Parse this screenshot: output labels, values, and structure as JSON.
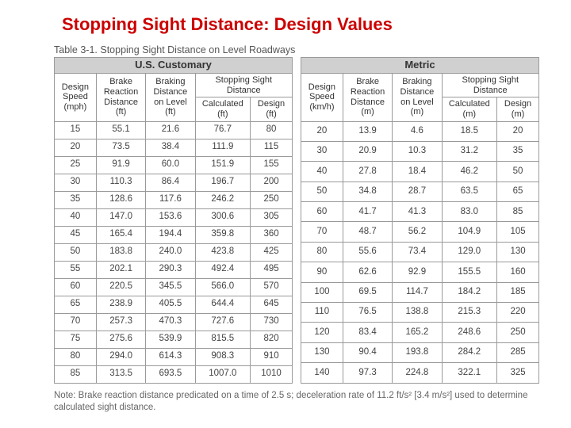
{
  "title": "Stopping Sight Distance: Design Values",
  "table_caption": "Table 3-1. Stopping Sight Distance on Level Roadways",
  "note": "Note: Brake reaction distance predicated on a time of 2.5 s; deceleration rate of 11.2 ft/s² [3.4 m/s²] used to determine calculated sight distance.",
  "us": {
    "group_label": "U.S. Customary",
    "headers": {
      "design_speed": "Design Speed (mph)",
      "brake_reaction": "Brake Reaction Distance (ft)",
      "braking_on_level": "Braking Distance on Level (ft)",
      "ssd_span": "Stopping Sight Distance",
      "ssd_calc": "Calculated (ft)",
      "ssd_design": "Design (ft)"
    },
    "rows": [
      [
        "15",
        "55.1",
        "21.6",
        "76.7",
        "80"
      ],
      [
        "20",
        "73.5",
        "38.4",
        "111.9",
        "115"
      ],
      [
        "25",
        "91.9",
        "60.0",
        "151.9",
        "155"
      ],
      [
        "30",
        "110.3",
        "86.4",
        "196.7",
        "200"
      ],
      [
        "35",
        "128.6",
        "117.6",
        "246.2",
        "250"
      ],
      [
        "40",
        "147.0",
        "153.6",
        "300.6",
        "305"
      ],
      [
        "45",
        "165.4",
        "194.4",
        "359.8",
        "360"
      ],
      [
        "50",
        "183.8",
        "240.0",
        "423.8",
        "425"
      ],
      [
        "55",
        "202.1",
        "290.3",
        "492.4",
        "495"
      ],
      [
        "60",
        "220.5",
        "345.5",
        "566.0",
        "570"
      ],
      [
        "65",
        "238.9",
        "405.5",
        "644.4",
        "645"
      ],
      [
        "70",
        "257.3",
        "470.3",
        "727.6",
        "730"
      ],
      [
        "75",
        "275.6",
        "539.9",
        "815.5",
        "820"
      ],
      [
        "80",
        "294.0",
        "614.3",
        "908.3",
        "910"
      ],
      [
        "85",
        "313.5",
        "693.5",
        "1007.0",
        "1010"
      ]
    ]
  },
  "metric": {
    "group_label": "Metric",
    "headers": {
      "design_speed": "Design Speed (km/h)",
      "brake_reaction": "Brake Reaction Distance (m)",
      "braking_on_level": "Braking Distance on Level (m)",
      "ssd_span": "Stopping Sight Distance",
      "ssd_calc": "Calculated (m)",
      "ssd_design": "Design (m)"
    },
    "rows": [
      [
        "20",
        "13.9",
        "4.6",
        "18.5",
        "20"
      ],
      [
        "30",
        "20.9",
        "10.3",
        "31.2",
        "35"
      ],
      [
        "40",
        "27.8",
        "18.4",
        "46.2",
        "50"
      ],
      [
        "50",
        "34.8",
        "28.7",
        "63.5",
        "65"
      ],
      [
        "60",
        "41.7",
        "41.3",
        "83.0",
        "85"
      ],
      [
        "70",
        "48.7",
        "56.2",
        "104.9",
        "105"
      ],
      [
        "80",
        "55.6",
        "73.4",
        "129.0",
        "130"
      ],
      [
        "90",
        "62.6",
        "92.9",
        "155.5",
        "160"
      ],
      [
        "100",
        "69.5",
        "114.7",
        "184.2",
        "185"
      ],
      [
        "110",
        "76.5",
        "138.8",
        "215.3",
        "220"
      ],
      [
        "120",
        "83.4",
        "165.2",
        "248.6",
        "250"
      ],
      [
        "130",
        "90.4",
        "193.8",
        "284.2",
        "285"
      ],
      [
        "140",
        "97.3",
        "224.8",
        "322.1",
        "325"
      ]
    ]
  }
}
